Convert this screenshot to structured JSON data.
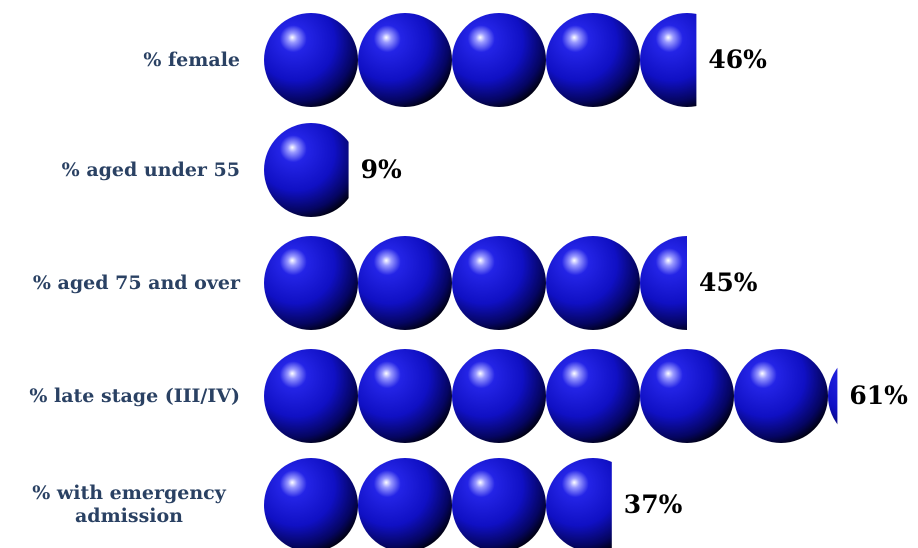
{
  "chart_data": {
    "type": "bar",
    "orientation": "horizontal",
    "marker": "sphere",
    "marker_unit": 10,
    "marker_color": "#1a1adb",
    "label_color": "#2a4163",
    "value_color": "#000000",
    "categories": [
      "% female",
      "% aged under 55",
      "% aged 75 and over",
      "% late stage (III/IV)",
      "% with emergency admission"
    ],
    "values": [
      46,
      9,
      45,
      61,
      37
    ],
    "value_labels": [
      "46%",
      "9%",
      "45%",
      "61%",
      "37%"
    ],
    "xlim": [
      0,
      100
    ],
    "title": "",
    "xlabel": "",
    "ylabel": "",
    "grid": false,
    "legend": "none"
  }
}
